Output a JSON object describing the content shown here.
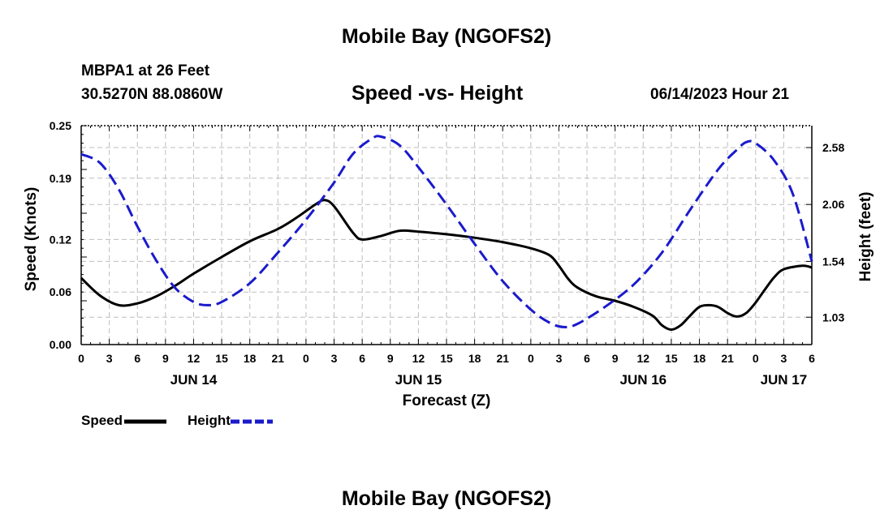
{
  "header": {
    "title": "Mobile Bay (NGOFS2)",
    "station": "MBPA1 at 26 Feet",
    "coords": "30.5270N  88.0860W",
    "subtitle": "Speed -vs- Height",
    "datetime": "06/14/2023 Hour 21"
  },
  "footer": {
    "title": "Mobile Bay (NGOFS2)"
  },
  "legend": {
    "speed_label": "Speed",
    "height_label": "Height"
  },
  "colors": {
    "speed": "#000000",
    "height": "#1a1acc",
    "grid": "#bdbdbd"
  },
  "chart_data": {
    "type": "line",
    "title": "Speed -vs- Height",
    "xlabel": "Forecast (Z)",
    "ylabel": "Speed (Knots)",
    "y2label": "Height (feet)",
    "xlim": [
      0,
      78
    ],
    "ylim": [
      0.0,
      0.25
    ],
    "y2lim": [
      0.78,
      2.78
    ],
    "grid": true,
    "legend_position": "bottom-left",
    "x_ticks": [
      0,
      3,
      6,
      9,
      12,
      15,
      18,
      21,
      24,
      27,
      30,
      33,
      36,
      39,
      42,
      45,
      48,
      51,
      54,
      57,
      60,
      63,
      66,
      69,
      72,
      75,
      78
    ],
    "x_tick_labels": [
      "0",
      "3",
      "6",
      "9",
      "12",
      "15",
      "18",
      "21",
      "0",
      "3",
      "6",
      "9",
      "12",
      "15",
      "18",
      "21",
      "0",
      "3",
      "6",
      "9",
      "12",
      "15",
      "18",
      "21",
      "0",
      "3",
      "6"
    ],
    "date_labels": [
      {
        "x": 12,
        "label": "JUN 14"
      },
      {
        "x": 36,
        "label": "JUN 15"
      },
      {
        "x": 60,
        "label": "JUN 16"
      },
      {
        "x": 75,
        "label": "JUN 17"
      }
    ],
    "y_ticks": [
      0.0,
      0.06,
      0.12,
      0.19,
      0.25
    ],
    "y_tick_labels": [
      "0.00",
      "0.06",
      "0.12",
      "0.19",
      "0.25"
    ],
    "y2_ticks": [
      1.03,
      1.54,
      2.06,
      2.58
    ],
    "y2_tick_labels": [
      "1.03",
      "1.54",
      "2.06",
      "2.58"
    ],
    "series": [
      {
        "name": "Speed",
        "axis": "left",
        "style": "solid",
        "points": [
          [
            0,
            0.076
          ],
          [
            2,
            0.056
          ],
          [
            4,
            0.045
          ],
          [
            6,
            0.047
          ],
          [
            8,
            0.055
          ],
          [
            10,
            0.067
          ],
          [
            12,
            0.081
          ],
          [
            15,
            0.1
          ],
          [
            18,
            0.118
          ],
          [
            21,
            0.132
          ],
          [
            23,
            0.145
          ],
          [
            25,
            0.16
          ],
          [
            26,
            0.165
          ],
          [
            27,
            0.158
          ],
          [
            29,
            0.128
          ],
          [
            30,
            0.12
          ],
          [
            32,
            0.124
          ],
          [
            34,
            0.13
          ],
          [
            36,
            0.129
          ],
          [
            39,
            0.126
          ],
          [
            42,
            0.122
          ],
          [
            45,
            0.117
          ],
          [
            48,
            0.11
          ],
          [
            50,
            0.102
          ],
          [
            51,
            0.09
          ],
          [
            52,
            0.075
          ],
          [
            53,
            0.065
          ],
          [
            55,
            0.055
          ],
          [
            57,
            0.05
          ],
          [
            59,
            0.043
          ],
          [
            61,
            0.033
          ],
          [
            62,
            0.022
          ],
          [
            63,
            0.017
          ],
          [
            64,
            0.022
          ],
          [
            65,
            0.033
          ],
          [
            66,
            0.043
          ],
          [
            67,
            0.045
          ],
          [
            68,
            0.043
          ],
          [
            69,
            0.036
          ],
          [
            70,
            0.032
          ],
          [
            71,
            0.036
          ],
          [
            72,
            0.048
          ],
          [
            73,
            0.063
          ],
          [
            74,
            0.077
          ],
          [
            75,
            0.086
          ],
          [
            77,
            0.09
          ],
          [
            78,
            0.088
          ]
        ]
      },
      {
        "name": "Height",
        "axis": "right",
        "style": "dashed",
        "points": [
          [
            0,
            2.52
          ],
          [
            2,
            2.44
          ],
          [
            4,
            2.2
          ],
          [
            6,
            1.86
          ],
          [
            8,
            1.55
          ],
          [
            10,
            1.3
          ],
          [
            12,
            1.17
          ],
          [
            13.5,
            1.14
          ],
          [
            15,
            1.17
          ],
          [
            18,
            1.34
          ],
          [
            21,
            1.62
          ],
          [
            24,
            1.92
          ],
          [
            27,
            2.26
          ],
          [
            29,
            2.52
          ],
          [
            31,
            2.66
          ],
          [
            32,
            2.68
          ],
          [
            34,
            2.6
          ],
          [
            36,
            2.4
          ],
          [
            39,
            2.06
          ],
          [
            42,
            1.7
          ],
          [
            45,
            1.36
          ],
          [
            48,
            1.1
          ],
          [
            50,
            0.98
          ],
          [
            51.5,
            0.94
          ],
          [
            53,
            0.97
          ],
          [
            56,
            1.13
          ],
          [
            59,
            1.33
          ],
          [
            62,
            1.62
          ],
          [
            65,
            2.01
          ],
          [
            68,
            2.38
          ],
          [
            70,
            2.56
          ],
          [
            71,
            2.63
          ],
          [
            72,
            2.62
          ],
          [
            74,
            2.46
          ],
          [
            76,
            2.15
          ],
          [
            78,
            1.54
          ]
        ]
      }
    ]
  }
}
